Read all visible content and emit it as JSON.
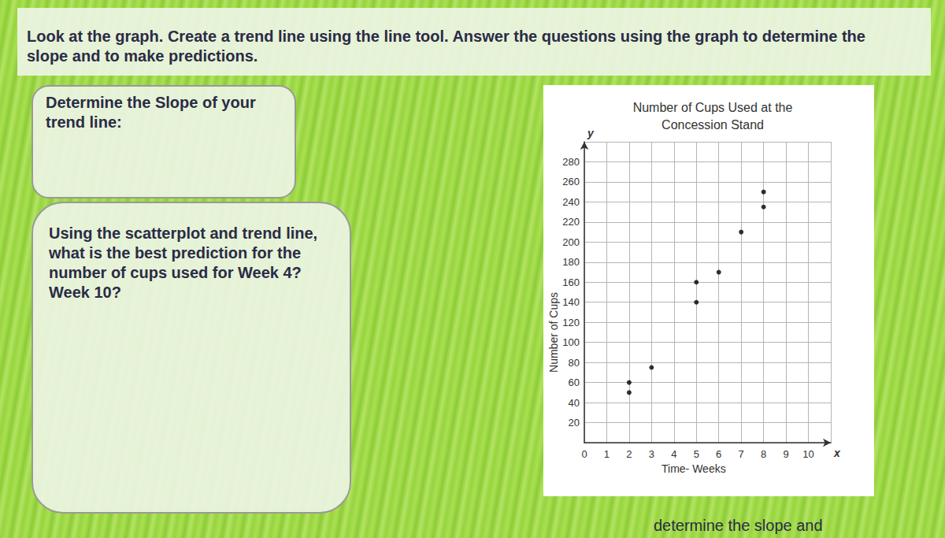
{
  "header": {
    "text": "Look at the graph. Create a trend line using the line tool. Answer the questions using the graph to determine the slope and to make predictions."
  },
  "panels": [
    {
      "text": "Determine the Slope of your trend line:"
    },
    {
      "text": "Using the scatterplot and trend line, what is the best prediction for the number of cups used for Week 4? Week 10?"
    }
  ],
  "footer": {
    "text": "determine the slope and"
  },
  "chart_data": {
    "type": "scatter",
    "title": "Number of Cups Used at the\nConcession Stand",
    "x_label": "Time- Weeks",
    "y_label": "Number of Cups",
    "x_axis_letter": "x",
    "y_axis_letter": "y",
    "x": [
      2,
      2,
      3,
      5,
      5,
      6,
      7,
      8,
      8
    ],
    "values": [
      60,
      50,
      75,
      160,
      140,
      170,
      210,
      250,
      235
    ],
    "color": "#000000",
    "marker": "circle",
    "xlim": [
      0,
      11
    ],
    "xticks": [
      0,
      1,
      2,
      3,
      4,
      5,
      6,
      7,
      8,
      9,
      10
    ],
    "ylim": [
      0,
      300
    ],
    "yticks": [
      20,
      40,
      60,
      80,
      100,
      120,
      140,
      160,
      180,
      200,
      220,
      240,
      260,
      280
    ],
    "grid": true
  }
}
